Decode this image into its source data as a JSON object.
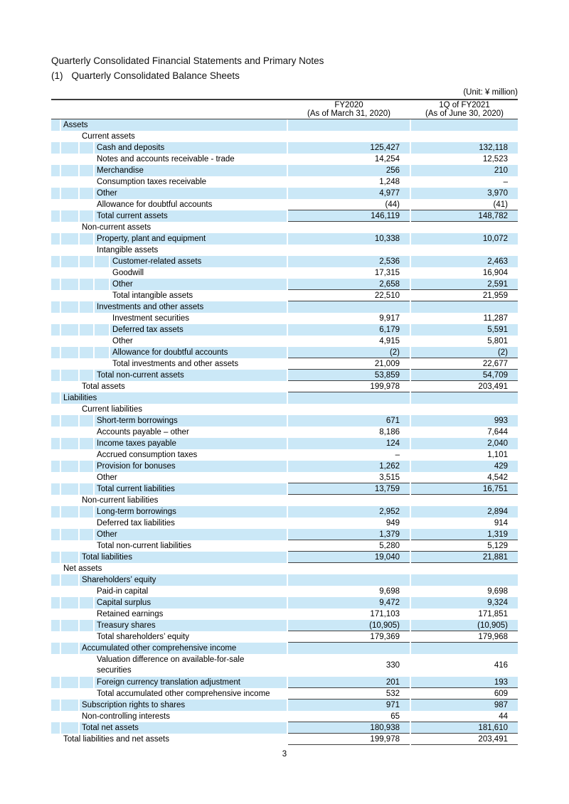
{
  "title": "Quarterly Consolidated Financial Statements and Primary Notes",
  "subtitle_prefix": "(1)",
  "subtitle": "Quarterly Consolidated Balance Sheets",
  "unit_label": "(Unit: ¥ million)",
  "page_number": "3",
  "colors": {
    "row_shade": "#cbe8f7",
    "rule": "#3c3c3c"
  },
  "table": {
    "columns": [
      {
        "line1": "FY2020",
        "line2": "(As of March 31, 2020)"
      },
      {
        "line1": "1Q of FY2021",
        "line2": "(As of June 30, 2020)"
      }
    ],
    "rows": [
      {
        "label": "Assets",
        "level": 1,
        "v1": "",
        "v2": "",
        "ul": false,
        "tall": false
      },
      {
        "label": "Current assets",
        "level": 2,
        "v1": "",
        "v2": "",
        "ul": false,
        "tall": false
      },
      {
        "label": "Cash and deposits",
        "level": 3,
        "v1": "125,427",
        "v2": "132,118",
        "ul": false,
        "tall": false
      },
      {
        "label": "Notes and accounts receivable - trade",
        "level": 3,
        "v1": "14,254",
        "v2": "12,523",
        "ul": false,
        "tall": false
      },
      {
        "label": "Merchandise",
        "level": 3,
        "v1": "256",
        "v2": "210",
        "ul": false,
        "tall": false
      },
      {
        "label": "Consumption taxes receivable",
        "level": 3,
        "v1": "1,248",
        "v2": "–",
        "ul": false,
        "tall": false
      },
      {
        "label": "Other",
        "level": 3,
        "v1": "4,977",
        "v2": "3,970",
        "ul": false,
        "tall": false
      },
      {
        "label": "Allowance for doubtful accounts",
        "level": 3,
        "v1": "(44)",
        "v2": "(41)",
        "ul": true,
        "tall": false
      },
      {
        "label": "Total current assets",
        "level": 3,
        "v1": "146,119",
        "v2": "148,782",
        "ul": true,
        "tall": false
      },
      {
        "label": "Non-current assets",
        "level": 2,
        "v1": "",
        "v2": "",
        "ul": false,
        "tall": false
      },
      {
        "label": "Property, plant and equipment",
        "level": 3,
        "v1": "10,338",
        "v2": "10,072",
        "ul": false,
        "tall": false
      },
      {
        "label": "Intangible assets",
        "level": 3,
        "v1": "",
        "v2": "",
        "ul": false,
        "tall": false
      },
      {
        "label": "Customer-related assets",
        "level": 4,
        "v1": "2,536",
        "v2": "2,463",
        "ul": false,
        "tall": false
      },
      {
        "label": "Goodwill",
        "level": 4,
        "v1": "17,315",
        "v2": "16,904",
        "ul": false,
        "tall": false
      },
      {
        "label": "Other",
        "level": 4,
        "v1": "2,658",
        "v2": "2,591",
        "ul": true,
        "tall": false
      },
      {
        "label": "Total intangible assets",
        "level": 4,
        "v1": "22,510",
        "v2": "21,959",
        "ul": true,
        "tall": false
      },
      {
        "label": "Investments and other assets",
        "level": 3,
        "v1": "",
        "v2": "",
        "ul": false,
        "tall": false
      },
      {
        "label": "Investment securities",
        "level": 4,
        "v1": "9,917",
        "v2": "11,287",
        "ul": false,
        "tall": false
      },
      {
        "label": "Deferred tax assets",
        "level": 4,
        "v1": "6,179",
        "v2": "5,591",
        "ul": false,
        "tall": false
      },
      {
        "label": "Other",
        "level": 4,
        "v1": "4,915",
        "v2": "5,801",
        "ul": false,
        "tall": false
      },
      {
        "label": "Allowance for doubtful accounts",
        "level": 4,
        "v1": "(2)",
        "v2": "(2)",
        "ul": true,
        "tall": false
      },
      {
        "label": "Total investments and other assets",
        "level": 4,
        "v1": "21,009",
        "v2": "22,677",
        "ul": true,
        "tall": false
      },
      {
        "label": "Total non-current assets",
        "level": 3,
        "v1": "53,859",
        "v2": "54,709",
        "ul": true,
        "tall": false
      },
      {
        "label": "Total assets",
        "level": 2,
        "v1": "199,978",
        "v2": "203,491",
        "ul": true,
        "tall": false
      },
      {
        "label": "Liabilities",
        "level": 1,
        "v1": "",
        "v2": "",
        "ul": false,
        "tall": false
      },
      {
        "label": "Current liabilities",
        "level": 2,
        "v1": "",
        "v2": "",
        "ul": false,
        "tall": false
      },
      {
        "label": "Short-term borrowings",
        "level": 3,
        "v1": "671",
        "v2": "993",
        "ul": false,
        "tall": false
      },
      {
        "label": "Accounts payable – other",
        "level": 3,
        "v1": "8,186",
        "v2": "7,644",
        "ul": false,
        "tall": false
      },
      {
        "label": "Income taxes payable",
        "level": 3,
        "v1": "124",
        "v2": "2,040",
        "ul": false,
        "tall": false
      },
      {
        "label": "Accrued consumption taxes",
        "level": 3,
        "v1": "–",
        "v2": "1,101",
        "ul": false,
        "tall": false
      },
      {
        "label": "Provision for bonuses",
        "level": 3,
        "v1": "1,262",
        "v2": "429",
        "ul": false,
        "tall": false
      },
      {
        "label": "Other",
        "level": 3,
        "v1": "3,515",
        "v2": "4,542",
        "ul": true,
        "tall": false
      },
      {
        "label": "Total current liabilities",
        "level": 3,
        "v1": "13,759",
        "v2": "16,751",
        "ul": true,
        "tall": false
      },
      {
        "label": "Non-current liabilities",
        "level": 2,
        "v1": "",
        "v2": "",
        "ul": false,
        "tall": false
      },
      {
        "label": "Long-term borrowings",
        "level": 3,
        "v1": "2,952",
        "v2": "2,894",
        "ul": false,
        "tall": false
      },
      {
        "label": "Deferred tax liabilities",
        "level": 3,
        "v1": "949",
        "v2": "914",
        "ul": false,
        "tall": false
      },
      {
        "label": "Other",
        "level": 3,
        "v1": "1,379",
        "v2": "1,319",
        "ul": true,
        "tall": false
      },
      {
        "label": "Total non-current liabilities",
        "level": 3,
        "v1": "5,280",
        "v2": "5,129",
        "ul": true,
        "tall": false
      },
      {
        "label": "Total liabilities",
        "level": 2,
        "v1": "19,040",
        "v2": "21,881",
        "ul": true,
        "tall": false
      },
      {
        "label": "Net assets",
        "level": 1,
        "v1": "",
        "v2": "",
        "ul": false,
        "tall": false
      },
      {
        "label": "Shareholders’ equity",
        "level": 2,
        "v1": "",
        "v2": "",
        "ul": false,
        "tall": false
      },
      {
        "label": "Paid-in capital",
        "level": 3,
        "v1": "9,698",
        "v2": "9,698",
        "ul": false,
        "tall": false
      },
      {
        "label": "Capital surplus",
        "level": 3,
        "v1": "9,472",
        "v2": "9,324",
        "ul": false,
        "tall": false
      },
      {
        "label": "Retained earnings",
        "level": 3,
        "v1": "171,103",
        "v2": "171,851",
        "ul": false,
        "tall": false
      },
      {
        "label": "Treasury shares",
        "level": 3,
        "v1": "(10,905)",
        "v2": "(10,905)",
        "ul": true,
        "tall": false
      },
      {
        "label": "Total shareholders’ equity",
        "level": 3,
        "v1": "179,369",
        "v2": "179,968",
        "ul": true,
        "tall": false
      },
      {
        "label": "Accumulated other comprehensive income",
        "level": 2,
        "v1": "",
        "v2": "",
        "ul": false,
        "tall": false
      },
      {
        "label": "Valuation difference on available-for-sale\nsecurities",
        "level": 3,
        "v1": "330",
        "v2": "416",
        "ul": false,
        "tall": true
      },
      {
        "label": "Foreign currency translation adjustment",
        "level": 3,
        "v1": "201",
        "v2": "193",
        "ul": true,
        "tall": false
      },
      {
        "label": "Total accumulated other comprehensive income",
        "level": 3,
        "v1": "532",
        "v2": "609",
        "ul": true,
        "tall": false
      },
      {
        "label": "Subscription rights to shares",
        "level": 2,
        "v1": "971",
        "v2": "987",
        "ul": false,
        "tall": false
      },
      {
        "label": "Non-controlling interests",
        "level": 2,
        "v1": "65",
        "v2": "44",
        "ul": true,
        "tall": false
      },
      {
        "label": "Total net assets",
        "level": 2,
        "v1": "180,938",
        "v2": "181,610",
        "ul": true,
        "tall": false
      },
      {
        "label": "Total liabilities and net assets",
        "level": 1,
        "v1": "199,978",
        "v2": "203,491",
        "ul": true,
        "tall": false
      }
    ]
  }
}
